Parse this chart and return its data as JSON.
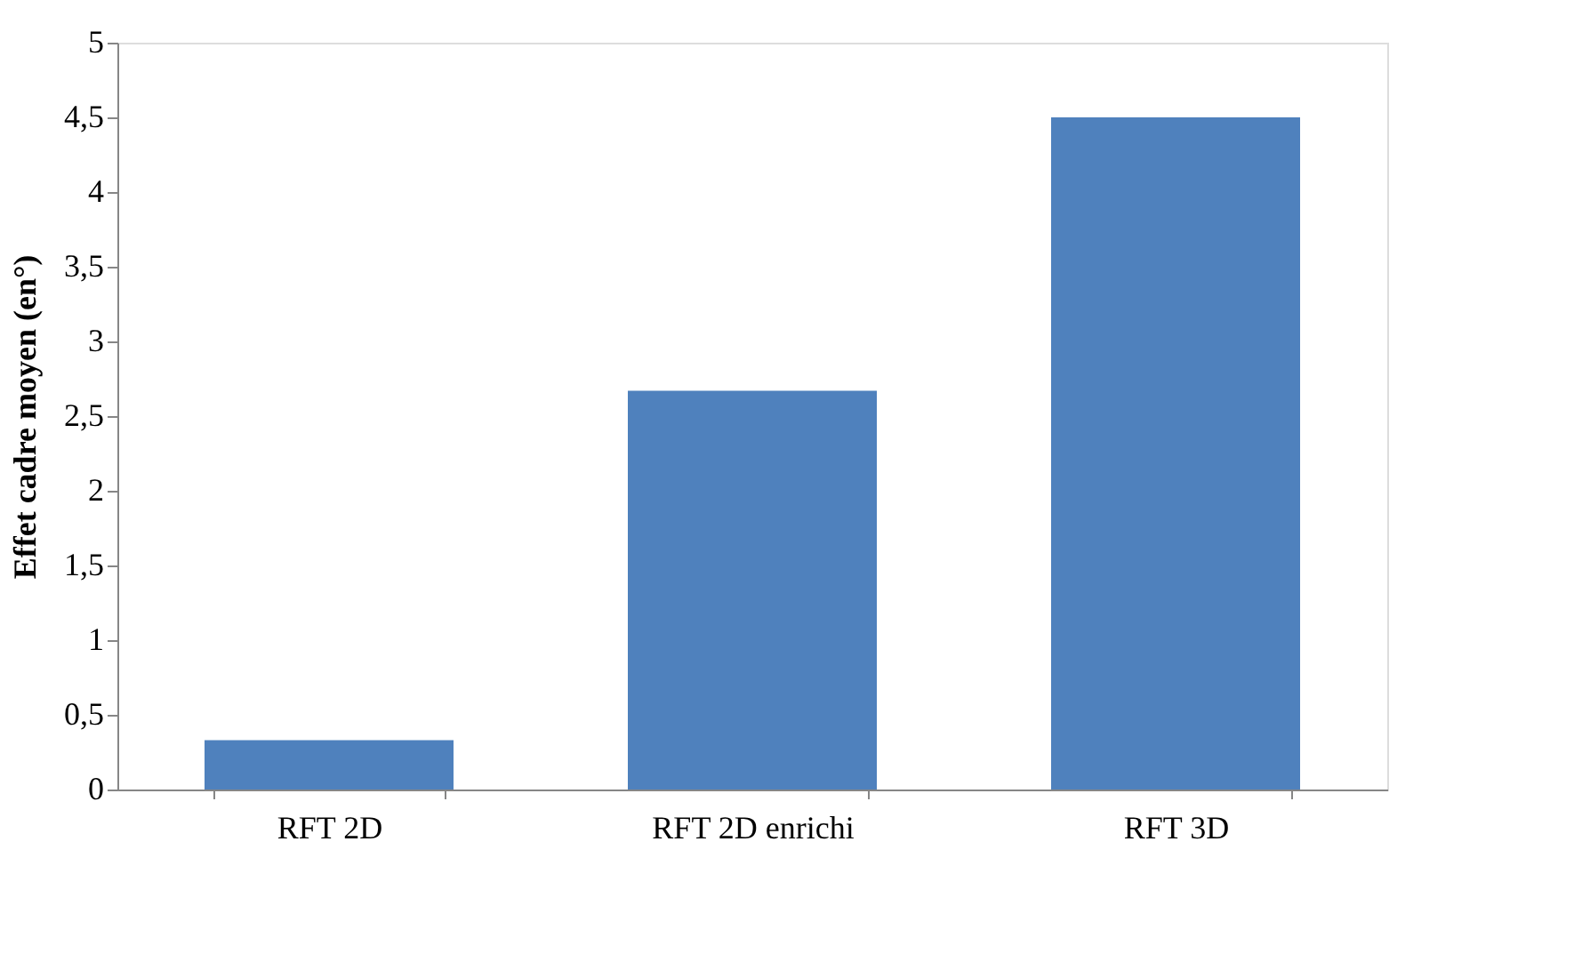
{
  "chart_data": {
    "type": "bar",
    "ylabel": "Effet cadre moyen (en°)",
    "categories": [
      "RFT 2D",
      "RFT 2D enrichi",
      "RFT 3D"
    ],
    "values": [
      0.33,
      2.67,
      4.5
    ],
    "color": "#4f81bd",
    "ylim": [
      0,
      5
    ],
    "yticks": [
      0,
      {
        "value": 0.5,
        "label": "0,5"
      },
      1,
      {
        "value": 1.5,
        "label": "1,5"
      },
      2,
      {
        "value": 2.5,
        "label": "2,5"
      },
      3,
      {
        "value": 3.5,
        "label": "3,5"
      },
      4,
      {
        "value": 4.5,
        "label": "4,5"
      },
      5
    ],
    "grid": false
  }
}
